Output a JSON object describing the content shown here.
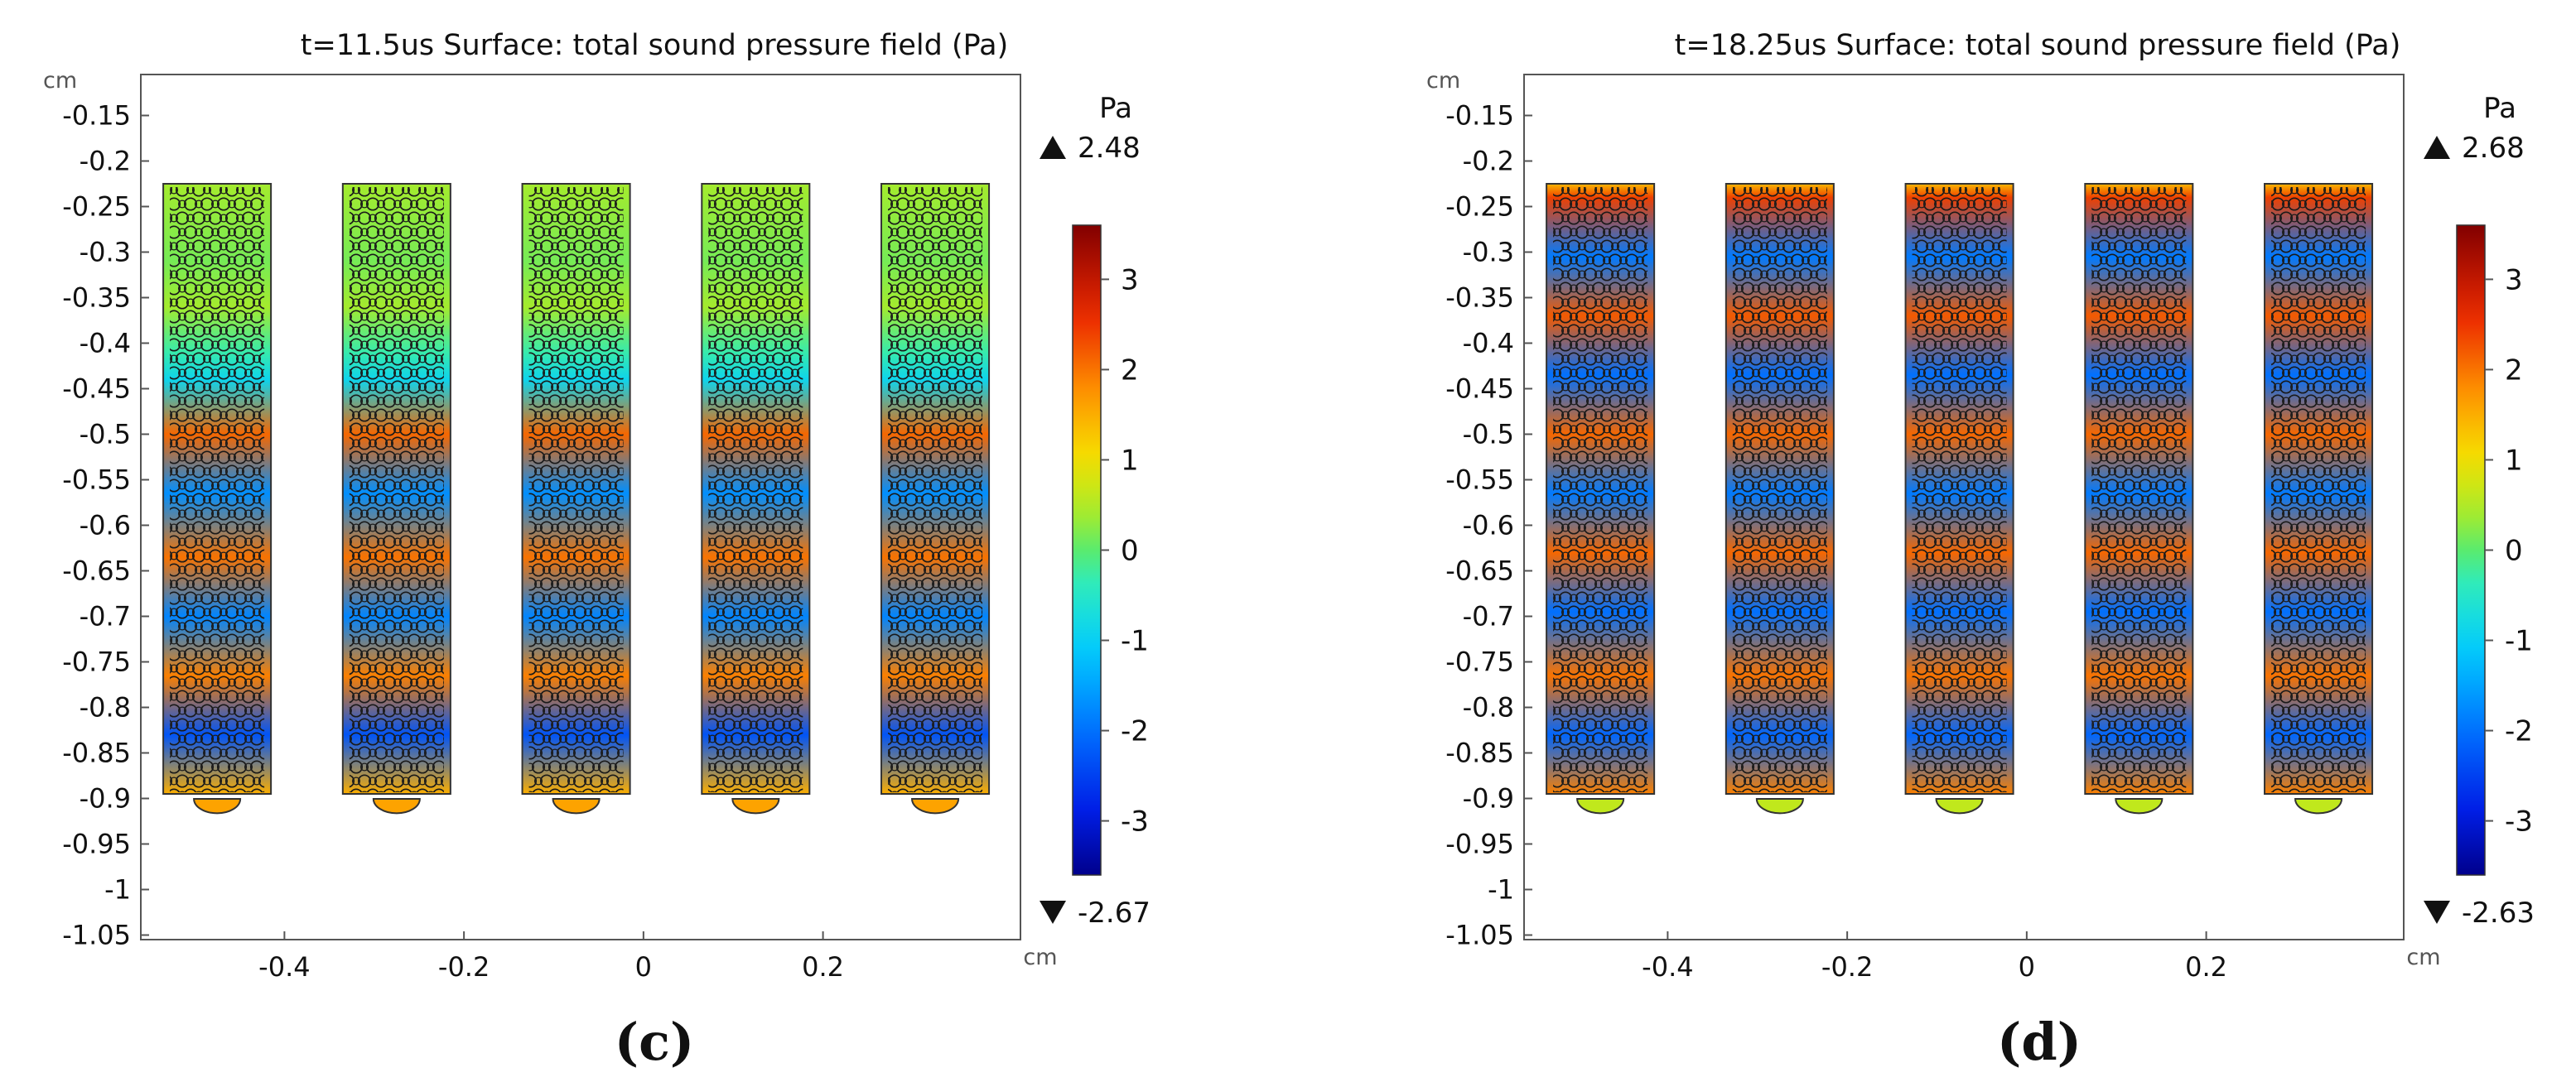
{
  "chart_data": [
    {
      "type": "heatmap",
      "panel_label": "(c)",
      "title": "t=11.5us Surface: total sound pressure field (Pa)",
      "xlabel": "cm",
      "ylabel": "cm",
      "x_ticks": [
        -0.4,
        -0.2,
        0,
        0.2
      ],
      "y_ticks": [
        -0.15,
        -0.2,
        -0.25,
        -0.3,
        -0.35,
        -0.4,
        -0.45,
        -0.5,
        -0.55,
        -0.6,
        -0.65,
        -0.7,
        -0.75,
        -0.8,
        -0.85,
        -0.9,
        -0.95,
        -1,
        -1.05
      ],
      "x_ticks_text": [
        "-0.4",
        "-0.2",
        "0",
        "0.2"
      ],
      "y_ticks_text": [
        "-0.15",
        "-0.2",
        "-0.25",
        "-0.3",
        "-0.35",
        "-0.4",
        "-0.45",
        "-0.5",
        "-0.55",
        "-0.6",
        "-0.65",
        "-0.7",
        "-0.75",
        "-0.8",
        "-0.85",
        "-0.9",
        "-0.95",
        "-1",
        "-1.05"
      ],
      "xlim": [
        -0.56,
        0.42
      ],
      "ylim": [
        -1.055,
        -0.105
      ],
      "columns": {
        "centers": [
          -0.475,
          -0.275,
          -0.075,
          0.125,
          0.325
        ],
        "width": 0.12,
        "y_top": -0.225,
        "y_bottom": -0.895
      },
      "colorbar": {
        "unit": "Pa",
        "max_label": "2.48",
        "min_label": "-2.67",
        "max": 2.48,
        "min": -2.67,
        "scale_range": [
          -3.6,
          3.6
        ],
        "ticks": [
          3,
          2,
          1,
          0,
          -1,
          -2,
          -3
        ],
        "ticks_text": [
          "3",
          "2",
          "1",
          "0",
          "-1",
          "-2",
          "-3"
        ],
        "colormap": "rainbow"
      },
      "pressure_profile": [
        {
          "y": -0.225,
          "value": 0.4
        },
        {
          "y": -0.31,
          "value": 0.15
        },
        {
          "y": -0.36,
          "value": 0.4
        },
        {
          "y": -0.41,
          "value": -0.3
        },
        {
          "y": -0.44,
          "value": -0.9
        },
        {
          "y": -0.5,
          "value": 2.1
        },
        {
          "y": -0.565,
          "value": -1.7
        },
        {
          "y": -0.635,
          "value": 2.0
        },
        {
          "y": -0.7,
          "value": -1.8
        },
        {
          "y": -0.765,
          "value": 1.9
        },
        {
          "y": -0.83,
          "value": -2.3
        },
        {
          "y": -0.895,
          "value": 1.5
        }
      ],
      "feet_value": 1.6
    },
    {
      "type": "heatmap",
      "panel_label": "(d)",
      "title": "t=18.25us Surface: total sound pressure field (Pa)",
      "xlabel": "cm",
      "ylabel": "cm",
      "x_ticks": [
        -0.4,
        -0.2,
        0,
        0.2
      ],
      "y_ticks": [
        -0.15,
        -0.2,
        -0.25,
        -0.3,
        -0.35,
        -0.4,
        -0.45,
        -0.5,
        -0.55,
        -0.6,
        -0.65,
        -0.7,
        -0.75,
        -0.8,
        -0.85,
        -0.9,
        -0.95,
        -1,
        -1.05
      ],
      "x_ticks_text": [
        "-0.4",
        "-0.2",
        "0",
        "0.2"
      ],
      "y_ticks_text": [
        "-0.15",
        "-0.2",
        "-0.25",
        "-0.3",
        "-0.35",
        "-0.4",
        "-0.45",
        "-0.5",
        "-0.55",
        "-0.6",
        "-0.65",
        "-0.7",
        "-0.75",
        "-0.8",
        "-0.85",
        "-0.9",
        "-0.95",
        "-1",
        "-1.05"
      ],
      "xlim": [
        -0.56,
        0.42
      ],
      "ylim": [
        -1.055,
        -0.105
      ],
      "columns": {
        "centers": [
          -0.475,
          -0.275,
          -0.075,
          0.125,
          0.325
        ],
        "width": 0.12,
        "y_top": -0.225,
        "y_bottom": -0.895
      },
      "colorbar": {
        "unit": "Pa",
        "max_label": "2.68",
        "min_label": "-2.63",
        "max": 2.68,
        "min": -2.63,
        "scale_range": [
          -3.6,
          3.6
        ],
        "ticks": [
          3,
          2,
          1,
          0,
          -1,
          -2,
          -3
        ],
        "ticks_text": [
          "3",
          "2",
          "1",
          "0",
          "-1",
          "-2",
          "-3"
        ],
        "colormap": "rainbow"
      },
      "pressure_profile": [
        {
          "y": -0.225,
          "value": 1.4
        },
        {
          "y": -0.24,
          "value": 2.4
        },
        {
          "y": -0.305,
          "value": -1.9
        },
        {
          "y": -0.37,
          "value": 2.2
        },
        {
          "y": -0.435,
          "value": -2.0
        },
        {
          "y": -0.5,
          "value": 2.1
        },
        {
          "y": -0.565,
          "value": -1.9
        },
        {
          "y": -0.63,
          "value": 2.1
        },
        {
          "y": -0.695,
          "value": -2.0
        },
        {
          "y": -0.765,
          "value": 2.0
        },
        {
          "y": -0.83,
          "value": -2.1
        },
        {
          "y": -0.895,
          "value": 1.9
        }
      ],
      "feet_value": 0.6
    }
  ]
}
